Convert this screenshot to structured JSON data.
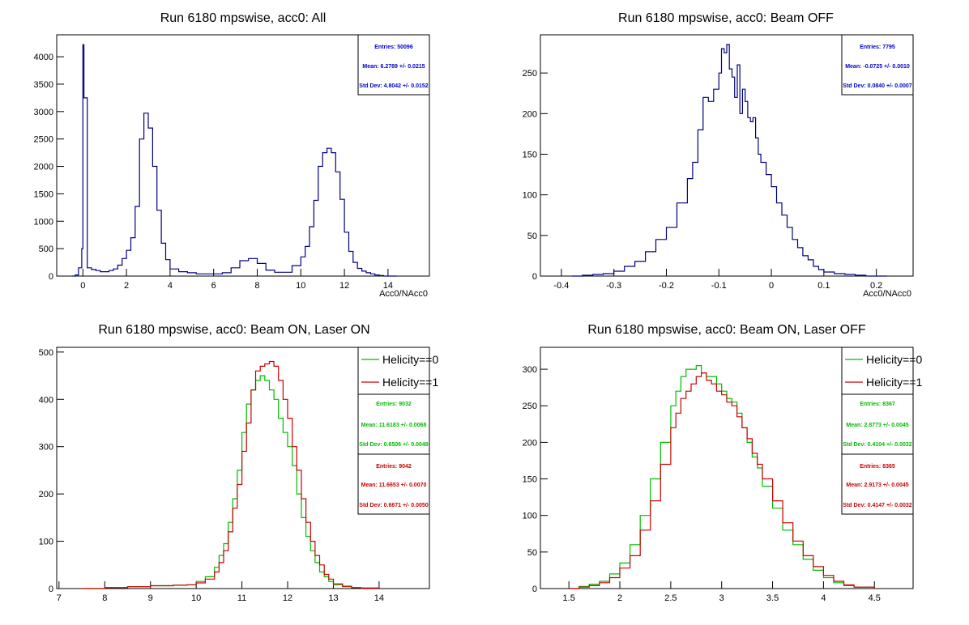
{
  "chart_data": [
    {
      "type": "histogram",
      "title": "Run 6180 mpswise, acc0: All",
      "xlabel": "Acc0/NAcc0",
      "ylabel": "",
      "xlim": [
        -1.2,
        15.9
      ],
      "ylim": [
        0,
        4400
      ],
      "xticks": [
        0,
        2,
        4,
        6,
        8,
        10,
        12,
        14
      ],
      "yticks": [
        0,
        500,
        1000,
        1500,
        2000,
        2500,
        3000,
        3500,
        4000
      ],
      "x": [
        -0.5,
        -0.35,
        -0.2,
        -0.05,
        0.0,
        0.05,
        0.2,
        0.4,
        0.6,
        0.8,
        1.0,
        1.2,
        1.4,
        1.6,
        1.8,
        2.0,
        2.2,
        2.4,
        2.6,
        2.8,
        3.0,
        3.2,
        3.4,
        3.6,
        3.8,
        4.0,
        4.4,
        4.8,
        5.2,
        5.6,
        6.0,
        6.4,
        6.8,
        7.2,
        7.6,
        8.0,
        8.4,
        8.8,
        9.2,
        9.6,
        10.0,
        10.2,
        10.4,
        10.6,
        10.8,
        11.0,
        11.2,
        11.4,
        11.6,
        11.8,
        12.0,
        12.2,
        12.4,
        12.6,
        12.8,
        13.0,
        13.2,
        13.4,
        13.6,
        13.8,
        14.0,
        14.4
      ],
      "series": [
        {
          "color": "#000080",
          "values": [
            0,
            20,
            150,
            500,
            4220,
            3250,
            150,
            120,
            100,
            80,
            80,
            100,
            130,
            200,
            320,
            470,
            700,
            1270,
            2500,
            2970,
            2700,
            2000,
            1200,
            600,
            300,
            130,
            80,
            60,
            40,
            40,
            40,
            60,
            150,
            280,
            320,
            230,
            110,
            70,
            70,
            190,
            350,
            540,
            900,
            1380,
            2000,
            2250,
            2330,
            2250,
            1900,
            1400,
            800,
            450,
            250,
            140,
            90,
            60,
            40,
            20,
            10,
            0,
            0,
            0
          ],
          "stats": {
            "entries": "Entries: 50096",
            "mean": "Mean: 6.2789 +/- 0.0215",
            "stddev": "Std Dev: 4.8042 +/- 0.0152"
          }
        }
      ]
    },
    {
      "type": "histogram",
      "title": "Run 6180 mpswise, acc0: Beam OFF",
      "xlabel": "Acc0/NAcc0",
      "ylabel": "",
      "xlim": [
        -0.44,
        0.27
      ],
      "ylim": [
        0,
        297
      ],
      "xticks": [
        -0.4,
        -0.3,
        -0.2,
        -0.1,
        0,
        0.1,
        0.2
      ],
      "yticks": [
        0,
        50,
        100,
        150,
        200,
        250
      ],
      "x": [
        -0.38,
        -0.36,
        -0.34,
        -0.32,
        -0.3,
        -0.28,
        -0.26,
        -0.24,
        -0.22,
        -0.2,
        -0.18,
        -0.16,
        -0.15,
        -0.14,
        -0.13,
        -0.12,
        -0.11,
        -0.1,
        -0.095,
        -0.09,
        -0.085,
        -0.08,
        -0.075,
        -0.07,
        -0.065,
        -0.06,
        -0.055,
        -0.05,
        -0.045,
        -0.04,
        -0.035,
        -0.03,
        -0.025,
        -0.02,
        -0.01,
        0.0,
        0.01,
        0.02,
        0.03,
        0.04,
        0.05,
        0.06,
        0.07,
        0.08,
        0.09,
        0.1,
        0.12,
        0.14,
        0.16,
        0.18,
        0.2,
        0.22
      ],
      "series": [
        {
          "color": "#000080",
          "values": [
            0,
            1,
            2,
            3,
            6,
            12,
            18,
            30,
            45,
            60,
            90,
            120,
            140,
            180,
            220,
            215,
            230,
            250,
            280,
            275,
            285,
            255,
            245,
            220,
            260,
            200,
            230,
            215,
            195,
            190,
            195,
            170,
            150,
            140,
            125,
            110,
            90,
            75,
            60,
            45,
            35,
            25,
            20,
            12,
            8,
            5,
            3,
            2,
            1,
            0,
            0,
            0
          ],
          "stats": {
            "entries": "Entries: 7795",
            "mean": "Mean: -0.0725 +/- 0.0010",
            "stddev": "Std Dev: 0.0840 +/- 0.0007"
          }
        }
      ]
    },
    {
      "type": "histogram",
      "title": "Run 6180 mpswise, acc0: Beam ON, Laser ON",
      "xlabel": "",
      "ylabel": "",
      "xlim": [
        6.95,
        15.1
      ],
      "ylim": [
        0,
        510
      ],
      "xticks": [
        7,
        8,
        9,
        10,
        11,
        12,
        13,
        14
      ],
      "yticks": [
        0,
        100,
        200,
        300,
        400,
        500
      ],
      "legend": [
        "Helicity==0",
        "Helicity==1"
      ],
      "x": [
        7.5,
        8.0,
        8.5,
        9.0,
        9.5,
        9.8,
        10.0,
        10.2,
        10.4,
        10.5,
        10.6,
        10.7,
        10.8,
        10.9,
        11.0,
        11.1,
        11.2,
        11.3,
        11.4,
        11.5,
        11.6,
        11.7,
        11.8,
        11.9,
        12.0,
        12.1,
        12.2,
        12.3,
        12.4,
        12.5,
        12.6,
        12.7,
        12.8,
        12.9,
        13.0,
        13.2,
        13.4,
        13.6,
        14.0
      ],
      "series": [
        {
          "name": "Helicity==0",
          "color": "#00bb00",
          "values": [
            0,
            2,
            4,
            6,
            7,
            8,
            15,
            25,
            45,
            70,
            95,
            140,
            190,
            250,
            330,
            390,
            420,
            440,
            450,
            440,
            420,
            400,
            360,
            330,
            300,
            260,
            200,
            150,
            110,
            80,
            55,
            35,
            25,
            15,
            8,
            4,
            2,
            1,
            0
          ],
          "stats": {
            "entries": "Entries: 9032",
            "mean": "Mean: 11.6183 +/- 0.0068",
            "stddev": "Std Dev: 0.6506 +/- 0.0048"
          }
        },
        {
          "name": "Helicity==1",
          "color": "#cc0000",
          "values": [
            0,
            2,
            4,
            6,
            7,
            8,
            12,
            20,
            35,
            55,
            80,
            120,
            170,
            220,
            290,
            350,
            420,
            460,
            470,
            475,
            480,
            470,
            440,
            400,
            360,
            300,
            250,
            190,
            140,
            100,
            70,
            50,
            30,
            20,
            10,
            5,
            2,
            1,
            0
          ],
          "stats": {
            "entries": "Entries: 9042",
            "mean": "Mean: 11.6653 +/- 0.0070",
            "stddev": "Std Dev: 0.6671 +/- 0.0050"
          }
        }
      ]
    },
    {
      "type": "histogram",
      "title": "Run 6180 mpswise, acc0: Beam ON, Laser OFF",
      "xlabel": "",
      "ylabel": "",
      "xlim": [
        1.22,
        4.88
      ],
      "ylim": [
        0,
        330
      ],
      "xticks": [
        1.5,
        2,
        2.5,
        3,
        3.5,
        4,
        4.5
      ],
      "yticks": [
        0,
        50,
        100,
        150,
        200,
        250,
        300
      ],
      "legend": [
        "Helicity==0",
        "Helicity==1"
      ],
      "x": [
        1.5,
        1.6,
        1.7,
        1.8,
        1.9,
        2.0,
        2.1,
        2.2,
        2.3,
        2.4,
        2.5,
        2.55,
        2.6,
        2.65,
        2.7,
        2.75,
        2.8,
        2.85,
        2.9,
        2.95,
        3.0,
        3.05,
        3.1,
        3.15,
        3.2,
        3.25,
        3.3,
        3.35,
        3.4,
        3.5,
        3.6,
        3.7,
        3.8,
        3.9,
        4.0,
        4.1,
        4.2,
        4.3,
        4.5
      ],
      "series": [
        {
          "name": "Helicity==0",
          "color": "#00bb00",
          "values": [
            0,
            3,
            6,
            10,
            20,
            35,
            60,
            100,
            150,
            200,
            250,
            270,
            290,
            300,
            300,
            305,
            295,
            290,
            290,
            280,
            270,
            260,
            255,
            240,
            220,
            200,
            180,
            165,
            140,
            110,
            80,
            60,
            40,
            25,
            15,
            8,
            4,
            2,
            0
          ],
          "stats": {
            "entries": "Entries: 8367",
            "mean": "Mean: 2.8773 +/- 0.0045",
            "stddev": "Std Dev: 0.4104 +/- 0.0032"
          }
        },
        {
          "name": "Helicity==1",
          "color": "#cc0000",
          "values": [
            0,
            2,
            4,
            8,
            15,
            28,
            45,
            80,
            120,
            170,
            220,
            240,
            260,
            270,
            280,
            290,
            295,
            285,
            280,
            270,
            265,
            255,
            250,
            235,
            220,
            205,
            185,
            170,
            150,
            120,
            90,
            65,
            45,
            30,
            18,
            10,
            5,
            2,
            0
          ],
          "stats": {
            "entries": "Entries: 8365",
            "mean": "Mean: 2.9173 +/- 0.0045",
            "stddev": "Std Dev: 0.4147 +/- 0.0032"
          }
        }
      ]
    }
  ]
}
